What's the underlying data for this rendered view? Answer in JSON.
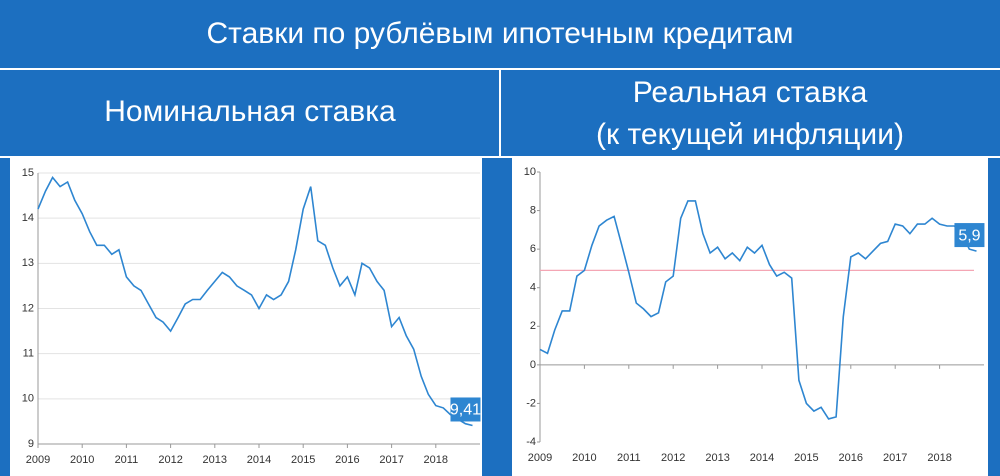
{
  "title": "Ставки по рублёвым ипотечным кредитам",
  "chart_data": [
    {
      "type": "line",
      "title": "Номинальная ставка",
      "color": "#2e86d1",
      "grid": true,
      "x": [
        2009,
        2009.17,
        2009.33,
        2009.5,
        2009.67,
        2009.83,
        2010,
        2010.17,
        2010.33,
        2010.5,
        2010.67,
        2010.83,
        2011,
        2011.17,
        2011.33,
        2011.5,
        2011.67,
        2011.83,
        2012,
        2012.17,
        2012.33,
        2012.5,
        2012.67,
        2012.83,
        2013,
        2013.17,
        2013.33,
        2013.5,
        2013.67,
        2013.83,
        2014,
        2014.17,
        2014.33,
        2014.5,
        2014.67,
        2014.83,
        2015,
        2015.17,
        2015.33,
        2015.5,
        2015.67,
        2015.83,
        2016,
        2016.17,
        2016.33,
        2016.5,
        2016.67,
        2016.83,
        2017,
        2017.17,
        2017.33,
        2017.5,
        2017.67,
        2017.83,
        2018,
        2018.17,
        2018.33,
        2018.5,
        2018.67,
        2018.83
      ],
      "values": [
        14.2,
        14.6,
        14.9,
        14.7,
        14.8,
        14.4,
        14.1,
        13.7,
        13.4,
        13.4,
        13.2,
        13.3,
        12.7,
        12.5,
        12.4,
        12.1,
        11.8,
        11.7,
        11.5,
        11.8,
        12.1,
        12.2,
        12.2,
        12.4,
        12.6,
        12.8,
        12.7,
        12.5,
        12.4,
        12.3,
        12.0,
        12.3,
        12.2,
        12.3,
        12.6,
        13.3,
        14.2,
        14.7,
        13.5,
        13.4,
        12.9,
        12.5,
        12.7,
        12.3,
        13.0,
        12.9,
        12.6,
        12.4,
        11.6,
        11.8,
        11.4,
        11.1,
        10.5,
        10.1,
        9.85,
        9.8,
        9.65,
        9.55,
        9.45,
        9.41
      ],
      "value_labels": [
        null,
        null,
        null,
        null,
        null,
        null,
        null,
        null,
        null,
        null,
        null,
        null,
        null,
        null,
        null,
        null,
        null,
        null,
        null,
        null,
        null,
        null,
        null,
        null,
        null,
        null,
        null,
        null,
        null,
        null,
        null,
        null,
        null,
        null,
        null,
        null,
        null,
        null,
        null,
        null,
        null,
        null,
        null,
        null,
        null,
        null,
        null,
        null,
        null,
        null,
        null,
        null,
        null,
        null,
        null,
        null,
        null,
        null,
        null,
        "9,41"
      ],
      "xlim": [
        2009,
        2019
      ],
      "xticks": [
        2009,
        2010,
        2011,
        2012,
        2013,
        2014,
        2015,
        2016,
        2017,
        2018
      ],
      "ylim": [
        9,
        15
      ],
      "yticks": [
        9,
        10,
        11,
        12,
        13,
        14,
        15
      ]
    },
    {
      "type": "line",
      "title": "Реальная ставка",
      "subtitle": "(к текущей инфляции)",
      "color": "#2e86d1",
      "grid": false,
      "reference_line": 4.9,
      "reference_color": "#f4a6b4",
      "x": [
        2009,
        2009.17,
        2009.33,
        2009.5,
        2009.67,
        2009.83,
        2010,
        2010.17,
        2010.33,
        2010.5,
        2010.67,
        2010.83,
        2011,
        2011.17,
        2011.33,
        2011.5,
        2011.67,
        2011.83,
        2012,
        2012.17,
        2012.33,
        2012.5,
        2012.67,
        2012.83,
        2013,
        2013.17,
        2013.33,
        2013.5,
        2013.67,
        2013.83,
        2014,
        2014.17,
        2014.33,
        2014.5,
        2014.67,
        2014.83,
        2015,
        2015.17,
        2015.33,
        2015.5,
        2015.67,
        2015.83,
        2016,
        2016.17,
        2016.33,
        2016.5,
        2016.67,
        2016.83,
        2017,
        2017.17,
        2017.33,
        2017.5,
        2017.67,
        2017.83,
        2018,
        2018.17,
        2018.33,
        2018.5,
        2018.67,
        2018.83
      ],
      "values": [
        0.8,
        0.6,
        1.8,
        2.8,
        2.8,
        4.6,
        4.9,
        6.2,
        7.2,
        7.5,
        7.7,
        6.3,
        4.8,
        3.2,
        2.9,
        2.5,
        2.7,
        4.3,
        4.6,
        7.6,
        8.5,
        8.5,
        6.8,
        5.8,
        6.1,
        5.5,
        5.8,
        5.4,
        6.1,
        5.8,
        6.2,
        5.2,
        4.6,
        4.8,
        4.5,
        -0.8,
        -2.0,
        -2.4,
        -2.2,
        -2.8,
        -2.7,
        2.5,
        5.6,
        5.8,
        5.5,
        5.9,
        6.3,
        6.4,
        7.3,
        7.2,
        6.8,
        7.3,
        7.3,
        7.6,
        7.3,
        7.2,
        7.2,
        6.8,
        6.0,
        5.9
      ],
      "value_labels": [
        null,
        null,
        null,
        null,
        null,
        null,
        null,
        null,
        null,
        null,
        null,
        null,
        null,
        null,
        null,
        null,
        null,
        null,
        null,
        null,
        null,
        null,
        null,
        null,
        null,
        null,
        null,
        null,
        null,
        null,
        null,
        null,
        null,
        null,
        null,
        null,
        null,
        null,
        null,
        null,
        null,
        null,
        null,
        null,
        null,
        null,
        null,
        null,
        null,
        null,
        null,
        null,
        null,
        null,
        null,
        null,
        null,
        null,
        null,
        "5,9"
      ],
      "xlim": [
        2009,
        2019
      ],
      "xticks": [
        2009,
        2010,
        2011,
        2012,
        2013,
        2014,
        2015,
        2016,
        2017,
        2018
      ],
      "ylim": [
        -4,
        10
      ],
      "yticks": [
        -4,
        -2,
        0,
        2,
        4,
        6,
        8,
        10
      ]
    }
  ]
}
